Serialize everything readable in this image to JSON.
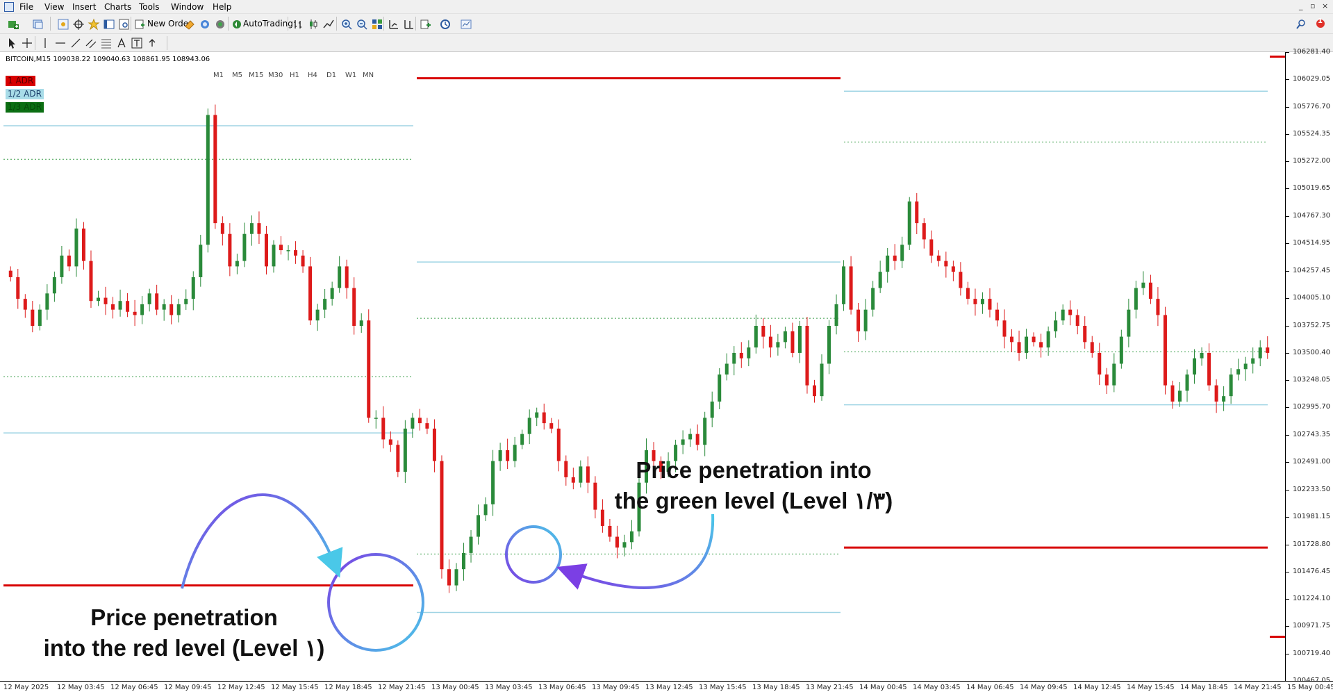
{
  "menu": [
    "File",
    "View",
    "Insert",
    "Charts",
    "Tools",
    "Window",
    "Help"
  ],
  "window_controls": [
    "_",
    "▫",
    "×"
  ],
  "toolbar": {
    "new_order_label": "New Order",
    "autotrading_label": "AutoTrading",
    "timeframes": [
      "M1",
      "M5",
      "M15",
      "M30",
      "H1",
      "H4",
      "D1",
      "W1",
      "MN"
    ],
    "alerts_badge": "1"
  },
  "chart": {
    "info": "BITCOIN,M15  109038.22 109040.63 108861.95 108943.06",
    "adr_labels": [
      "1 ADR",
      "1/2 ADR",
      "1/3 ADR"
    ]
  },
  "colors": {
    "bull": "#2a8a3a",
    "bear": "#dd1a1a",
    "adr_full": "#d80000",
    "adr_half": "#9fd4e4",
    "adr_third": "#3b9e4a",
    "circle_a": "#7b3fe4",
    "circle_b": "#4ac8e8"
  },
  "annotations": {
    "red_level": [
      "Price penetration",
      "into the red level (Level ١)"
    ],
    "green_level": [
      "Price penetration into",
      "the green level (Level ١/٣)"
    ]
  },
  "chart_data": {
    "type": "candlestick",
    "symbol": "BITCOIN",
    "timeframe": "M15",
    "ylim": [
      100467.05,
      106281.4
    ],
    "price_ticks": [
      "106281.40",
      "106029.05",
      "105776.70",
      "105524.35",
      "105272.00",
      "105019.65",
      "104767.30",
      "104514.95",
      "104257.45",
      "104005.10",
      "103752.75",
      "103500.40",
      "103248.05",
      "102995.70",
      "102743.35",
      "102491.00",
      "102233.50",
      "101981.15",
      "101728.80",
      "101476.45",
      "101224.10",
      "100971.75",
      "100719.40",
      "100467.05"
    ],
    "time_ticks": [
      "12 May 2025",
      "12 May 03:45",
      "12 May 06:45",
      "12 May 09:45",
      "12 May 12:45",
      "12 May 15:45",
      "12 May 18:45",
      "12 May 21:45",
      "13 May 00:45",
      "13 May 03:45",
      "13 May 06:45",
      "13 May 09:45",
      "13 May 12:45",
      "13 May 15:45",
      "13 May 18:45",
      "13 May 21:45",
      "14 May 00:45",
      "14 May 03:45",
      "14 May 06:45",
      "14 May 09:45",
      "14 May 12:45",
      "14 May 15:45",
      "14 May 18:45",
      "14 May 21:45",
      "15 May 00:45"
    ],
    "adr_levels": [
      {
        "day": "12 May",
        "full_upper": null,
        "full_lower": 101350,
        "half_upper": 105600,
        "half_lower": 102760,
        "third_upper": 105290,
        "third_lower": 103280
      },
      {
        "day": "13 May",
        "full_upper": 106040,
        "full_lower": null,
        "half_upper": 104340,
        "half_lower": 101100,
        "third_upper": 103820,
        "third_lower": 101640
      },
      {
        "day": "14 May",
        "full_upper": null,
        "full_lower": 101700,
        "half_upper": 105920,
        "half_lower": 103020,
        "third_upper": 105450,
        "third_lower": 103510
      }
    ],
    "series_close": [
      104200,
      104000,
      103900,
      103750,
      103900,
      104050,
      104200,
      104400,
      104300,
      104650,
      104350,
      103980,
      104010,
      103950,
      103900,
      103980,
      103880,
      103850,
      103950,
      104050,
      103900,
      103950,
      103850,
      103950,
      104000,
      104200,
      104500,
      105700,
      104700,
      104600,
      104300,
      104350,
      104600,
      104700,
      104600,
      104300,
      104500,
      104450,
      104450,
      104400,
      104300,
      103800,
      103900,
      104000,
      104100,
      104300,
      104100,
      103750,
      103800,
      102900,
      102900,
      102700,
      102650,
      102400,
      102800,
      102900,
      102850,
      102800,
      102500,
      101500,
      101350,
      101500,
      101650,
      101800,
      102000,
      102100,
      102500,
      102600,
      102500,
      102650,
      102750,
      102900,
      102950,
      102850,
      102800,
      102500,
      102350,
      102300,
      102450,
      102300,
      102050,
      101900,
      101800,
      101700,
      101750,
      101850,
      102300,
      102600,
      102500,
      102400,
      102500,
      102650,
      102700,
      102750,
      102650,
      102900,
      103050,
      103300,
      103400,
      103500,
      103450,
      103550,
      103750,
      103650,
      103550,
      103600,
      103700,
      103500,
      103750,
      103200,
      103100,
      103400,
      103750,
      103950,
      104300,
      103900,
      103700,
      103900,
      104100,
      104250,
      104400,
      104350,
      104500,
      104900,
      104700,
      104550,
      104400,
      104350,
      104300,
      104250,
      104100,
      104000,
      103950,
      104000,
      103900,
      103800,
      103650,
      103600,
      103500,
      103650,
      103600,
      103550,
      103700,
      103800,
      103900,
      103850,
      103750,
      103600,
      103500,
      103300,
      103200,
      103400,
      103650,
      103900,
      104100,
      104150,
      104000,
      103850,
      103200,
      103050,
      103150,
      103300,
      103450,
      103500,
      103200,
      103050,
      103100,
      103300,
      103350,
      103400,
      103450,
      103550,
      103500
    ]
  }
}
